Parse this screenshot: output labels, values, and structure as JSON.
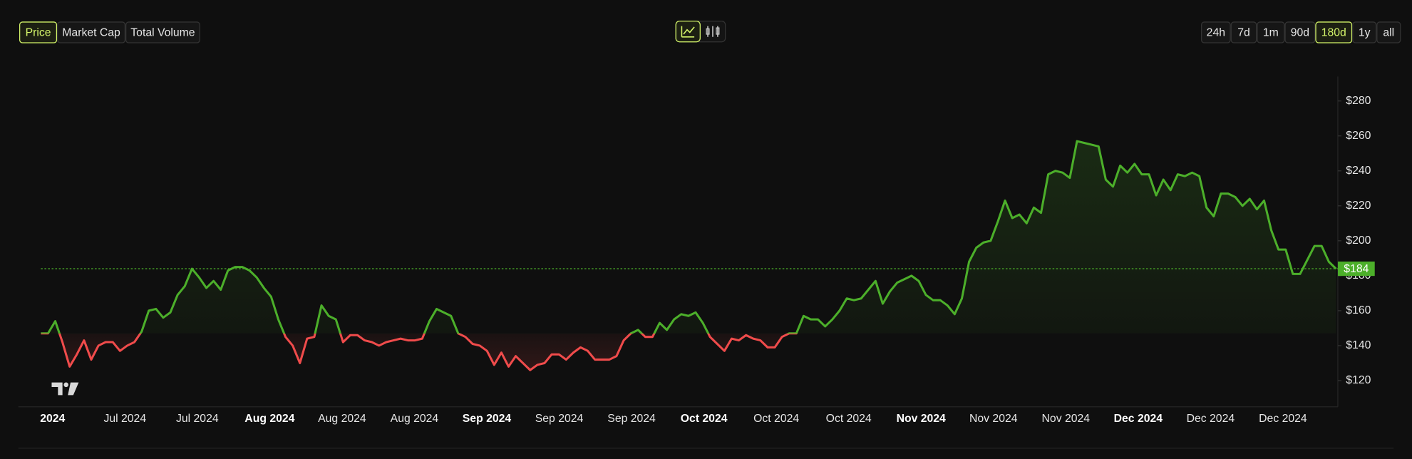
{
  "tabs": [
    "Price",
    "Market Cap",
    "Total Volume"
  ],
  "intervals": [
    "24h",
    "7d",
    "1m",
    "90d",
    "180d",
    "1y",
    "all"
  ],
  "chart_data": {
    "type": "line",
    "values": [
      147,
      147,
      154,
      142,
      128,
      135,
      143,
      132,
      140,
      142,
      142,
      137,
      140,
      142,
      148,
      160,
      161,
      156,
      159,
      169,
      174,
      184,
      179,
      173,
      177,
      172,
      183,
      185,
      185,
      183,
      179,
      173,
      168,
      155,
      145,
      140,
      130,
      144,
      145,
      163,
      157,
      155,
      142,
      146,
      146,
      143,
      142,
      140,
      142,
      143,
      144,
      143,
      143,
      144,
      154,
      161,
      159,
      157,
      147,
      145,
      141,
      140,
      137,
      129,
      136,
      128,
      134,
      130,
      126,
      129,
      130,
      135,
      135,
      132,
      136,
      139,
      137,
      132,
      132,
      132,
      134,
      143,
      147,
      149,
      145,
      145,
      153,
      149,
      155,
      158,
      157,
      159,
      153,
      145,
      141,
      137,
      144,
      143,
      146,
      144,
      143,
      139,
      139,
      145,
      147,
      147,
      157,
      155,
      155,
      151,
      155,
      160,
      167,
      166,
      167,
      172,
      177,
      164,
      171,
      176,
      178,
      180,
      177,
      169,
      166,
      166,
      163,
      158,
      167,
      188,
      196,
      199,
      200,
      211,
      223,
      213,
      215,
      210,
      219,
      216,
      238,
      240,
      239,
      236,
      257,
      256,
      255,
      254,
      235,
      231,
      243,
      239,
      244,
      238,
      238,
      226,
      235,
      229,
      238,
      237,
      239,
      237,
      219,
      214,
      227,
      227,
      225,
      220,
      224,
      218,
      223,
      206,
      195,
      195,
      181,
      181,
      189,
      197,
      197,
      188,
      184
    ],
    "up_color": "#4caf2a",
    "down_color": "#f04b4b",
    "ylim": [
      105,
      294
    ],
    "yticks": [
      {
        "value": 120,
        "label": "$120"
      },
      {
        "value": 140,
        "label": "$140"
      },
      {
        "value": 160,
        "label": "$160"
      },
      {
        "value": 180,
        "label": "$180"
      },
      {
        "value": 200,
        "label": "$200"
      },
      {
        "value": 220,
        "label": "$220"
      },
      {
        "value": 240,
        "label": "$240"
      },
      {
        "value": 260,
        "label": "$260"
      },
      {
        "value": 280,
        "label": "$280"
      }
    ],
    "xticks": [
      {
        "label": "2024",
        "major": true
      },
      {
        "label": "Jul 2024"
      },
      {
        "label": "Jul 2024"
      },
      {
        "label": "Aug 2024",
        "major": true
      },
      {
        "label": "Aug 2024"
      },
      {
        "label": "Aug 2024"
      },
      {
        "label": "Sep 2024",
        "major": true
      },
      {
        "label": "Sep 2024"
      },
      {
        "label": "Sep 2024"
      },
      {
        "label": "Oct 2024",
        "major": true
      },
      {
        "label": "Oct 2024"
      },
      {
        "label": "Oct 2024"
      },
      {
        "label": "Nov 2024",
        "major": true
      },
      {
        "label": "Nov 2024"
      },
      {
        "label": "Nov 2024"
      },
      {
        "label": "Dec 2024",
        "major": true
      },
      {
        "label": "Dec 2024"
      },
      {
        "label": "Dec 2024"
      }
    ],
    "current": {
      "value": 184,
      "label": "$184"
    }
  }
}
